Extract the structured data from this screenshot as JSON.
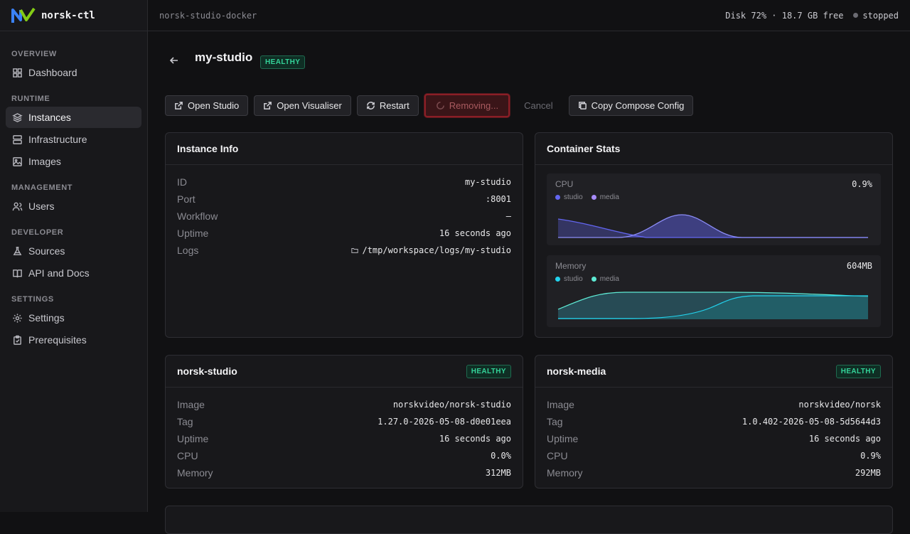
{
  "app": {
    "name": "norsk-ctl"
  },
  "sidebar": {
    "sections": [
      {
        "title": "OVERVIEW",
        "items": [
          {
            "label": "Dashboard",
            "icon": "dashboard-icon"
          }
        ]
      },
      {
        "title": "RUNTIME",
        "items": [
          {
            "label": "Instances",
            "icon": "layers-icon",
            "active": true
          },
          {
            "label": "Infrastructure",
            "icon": "server-icon"
          },
          {
            "label": "Images",
            "icon": "image-icon"
          }
        ]
      },
      {
        "title": "MANAGEMENT",
        "items": [
          {
            "label": "Users",
            "icon": "users-icon"
          }
        ]
      },
      {
        "title": "DEVELOPER",
        "items": [
          {
            "label": "Sources",
            "icon": "flask-icon"
          },
          {
            "label": "API and Docs",
            "icon": "book-icon"
          }
        ]
      },
      {
        "title": "SETTINGS",
        "items": [
          {
            "label": "Settings",
            "icon": "gear-icon"
          },
          {
            "label": "Prerequisites",
            "icon": "clipboard-icon"
          }
        ]
      }
    ]
  },
  "topbar": {
    "context": "norsk-studio-docker",
    "disk": "Disk 72% · 18.7 GB free",
    "status": "stopped"
  },
  "page": {
    "title": "my-studio",
    "status_badge": "HEALTHY"
  },
  "actions": {
    "open_studio": "Open Studio",
    "open_visualiser": "Open Visualiser",
    "restart": "Restart",
    "removing": "Removing...",
    "cancel": "Cancel",
    "copy_compose": "Copy Compose Config"
  },
  "instance_info": {
    "title": "Instance Info",
    "rows": [
      {
        "k": "ID",
        "v": "my-studio"
      },
      {
        "k": "Port",
        "v": ":8001"
      },
      {
        "k": "Workflow",
        "v": "–"
      },
      {
        "k": "Uptime",
        "v": "16 seconds ago"
      },
      {
        "k": "Logs",
        "v": "/tmp/workspace/logs/my-studio"
      }
    ]
  },
  "container_stats": {
    "title": "Container Stats",
    "cpu": {
      "label": "CPU",
      "value": "0.9%",
      "legend": [
        "studio",
        "media"
      ],
      "colors": [
        "#6366f1",
        "#a78bfa"
      ]
    },
    "memory": {
      "label": "Memory",
      "value": "604MB",
      "legend": [
        "studio",
        "media"
      ],
      "colors": [
        "#22d3ee",
        "#5eead4"
      ]
    }
  },
  "studio_card": {
    "title": "norsk-studio",
    "badge": "HEALTHY",
    "rows": [
      {
        "k": "Image",
        "v": "norskvideo/norsk-studio"
      },
      {
        "k": "Tag",
        "v": "1.27.0-2026-05-08-d0e01eea"
      },
      {
        "k": "Uptime",
        "v": "16 seconds ago"
      },
      {
        "k": "CPU",
        "v": "0.0%"
      },
      {
        "k": "Memory",
        "v": "312MB"
      }
    ]
  },
  "media_card": {
    "title": "norsk-media",
    "badge": "HEALTHY",
    "rows": [
      {
        "k": "Image",
        "v": "norskvideo/norsk"
      },
      {
        "k": "Tag",
        "v": "1.0.402-2026-05-08-5d5644d3"
      },
      {
        "k": "Uptime",
        "v": "16 seconds ago"
      },
      {
        "k": "CPU",
        "v": "0.9%"
      },
      {
        "k": "Memory",
        "v": "292MB"
      }
    ]
  }
}
